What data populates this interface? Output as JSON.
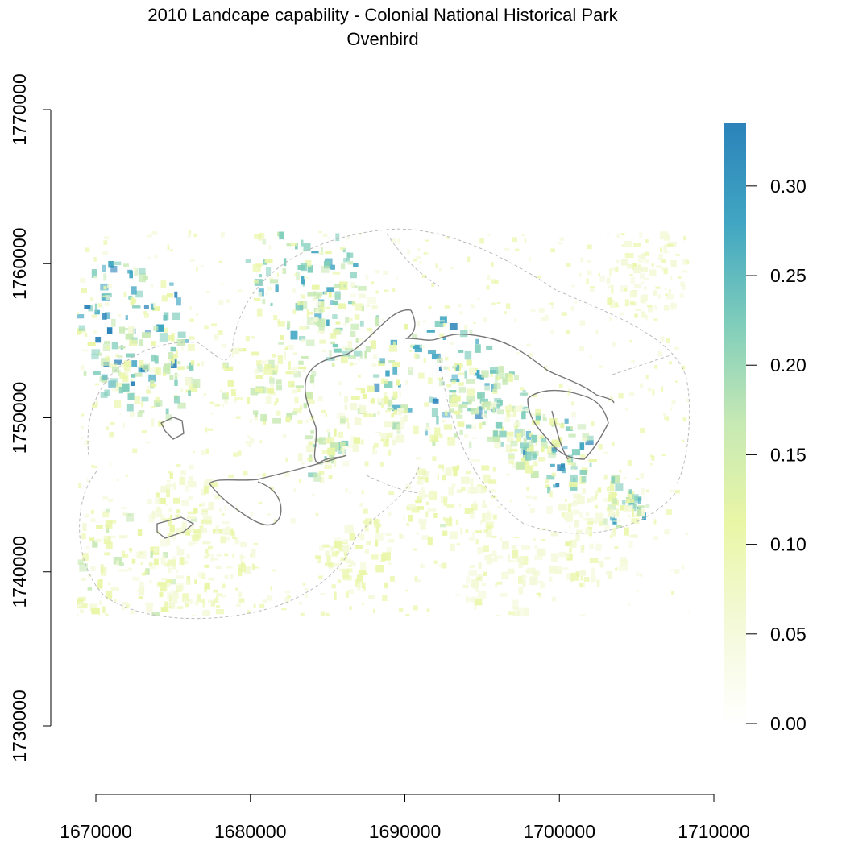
{
  "title": "2010 Landcape capability - Colonial National Historical Park",
  "subtitle": "Ovenbird",
  "x_axis": {
    "ticks": [
      "1670000",
      "1680000",
      "1690000",
      "1700000",
      "1710000"
    ],
    "tick_values": [
      1670000,
      1680000,
      1690000,
      1700000,
      1710000
    ],
    "range": [
      1670000,
      1710000
    ]
  },
  "y_axis": {
    "ticks": [
      "1730000",
      "1740000",
      "1750000",
      "1760000",
      "1770000"
    ],
    "tick_values": [
      1730000,
      1740000,
      1750000,
      1760000,
      1770000
    ],
    "range": [
      1730000,
      1770000
    ]
  },
  "legend": {
    "type": "continuous colorbar",
    "placement": "right",
    "ticks": [
      "0.00",
      "0.05",
      "0.10",
      "0.15",
      "0.20",
      "0.25",
      "0.30"
    ],
    "tick_values": [
      0.0,
      0.05,
      0.1,
      0.15,
      0.2,
      0.25,
      0.3
    ],
    "range": [
      0.0,
      0.335
    ],
    "colors": [
      "#ffffff",
      "#f4f9d8",
      "#e9f6a6",
      "#c7e9b4",
      "#7fcdbb",
      "#41a6c2",
      "#2b83ba"
    ]
  },
  "map": {
    "extent_x": [
      1668800,
      1708800
    ],
    "extent_y": [
      1737300,
      1762300
    ],
    "park_boundary_color": "#777777",
    "buffer_boundary_color": "#bbbbbb"
  }
}
